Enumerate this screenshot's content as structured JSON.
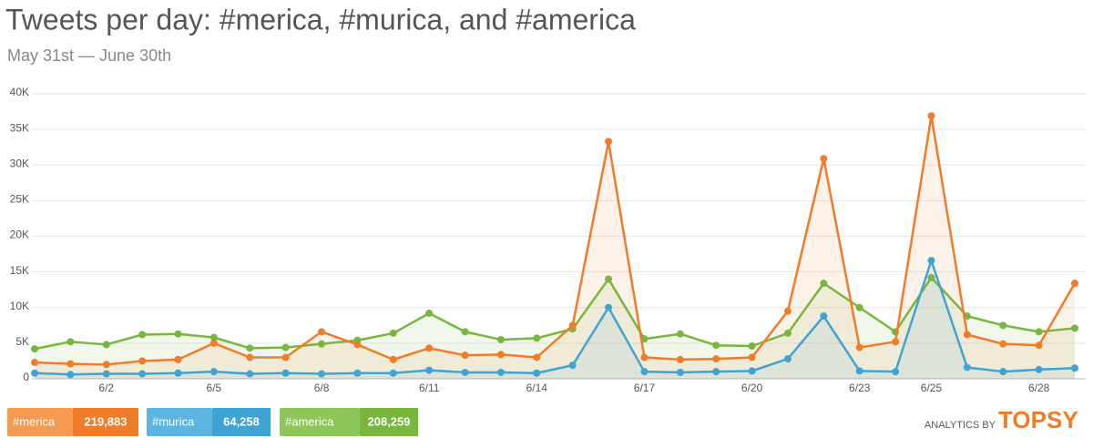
{
  "chart_data": {
    "type": "line",
    "title": "Tweets per day: #merica, #murica, and #america",
    "subtitle": "May 31st — June 30th",
    "categories": [
      null,
      null,
      "6/2",
      null,
      null,
      "6/5",
      null,
      null,
      "6/8",
      null,
      null,
      "6/11",
      null,
      null,
      "6/14",
      null,
      null,
      "6/17",
      null,
      null,
      "6/20",
      null,
      null,
      "6/23",
      null,
      "6/25",
      null,
      null,
      "6/28",
      null
    ],
    "ylim": [
      0,
      40000
    ],
    "yticks": [
      0,
      {
        "value": 5000,
        "label": "5K"
      },
      {
        "value": 10000,
        "label": "10K"
      },
      {
        "value": 15000,
        "label": "15K"
      },
      {
        "value": 20000,
        "label": "20K"
      },
      {
        "value": 25000,
        "label": "25K"
      },
      {
        "value": 30000,
        "label": "30K"
      },
      {
        "value": 35000,
        "label": "35K"
      },
      {
        "value": 40000,
        "label": "40K"
      }
    ],
    "grid": true,
    "series": [
      {
        "name": "#merica",
        "color": "#f07c2a",
        "total": 219883,
        "total_label": "219,883",
        "values": [
          2300,
          2100,
          2000,
          2500,
          2700,
          5000,
          3000,
          3000,
          6600,
          4800,
          2700,
          4300,
          3300,
          3400,
          3000,
          7500,
          33300,
          3000,
          2700,
          2800,
          3000,
          9500,
          30900,
          4400,
          5200,
          36900,
          6200,
          4900,
          4700,
          13400
        ]
      },
      {
        "name": "#murica",
        "color": "#3fa3d4",
        "total": 64258,
        "total_label": "64,258",
        "values": [
          800,
          600,
          700,
          700,
          800,
          1000,
          700,
          800,
          700,
          800,
          800,
          1200,
          900,
          900,
          800,
          1900,
          10000,
          1000,
          900,
          1000,
          1100,
          2800,
          8800,
          1100,
          1000,
          16600,
          1600,
          1000,
          1300,
          1500
        ]
      },
      {
        "name": "#america",
        "color": "#79b63e",
        "total": 208259,
        "total_label": "208,259",
        "values": [
          4200,
          5200,
          4800,
          6200,
          6300,
          5800,
          4300,
          4400,
          4900,
          5400,
          6400,
          9200,
          6600,
          5500,
          5700,
          7000,
          14000,
          5600,
          6300,
          4700,
          4600,
          6400,
          13400,
          10000,
          6600,
          14200,
          8800,
          7500,
          6600,
          7100
        ]
      }
    ],
    "footer": {
      "prefix": "ANALYTICS BY",
      "brand": "TOPSY"
    }
  }
}
